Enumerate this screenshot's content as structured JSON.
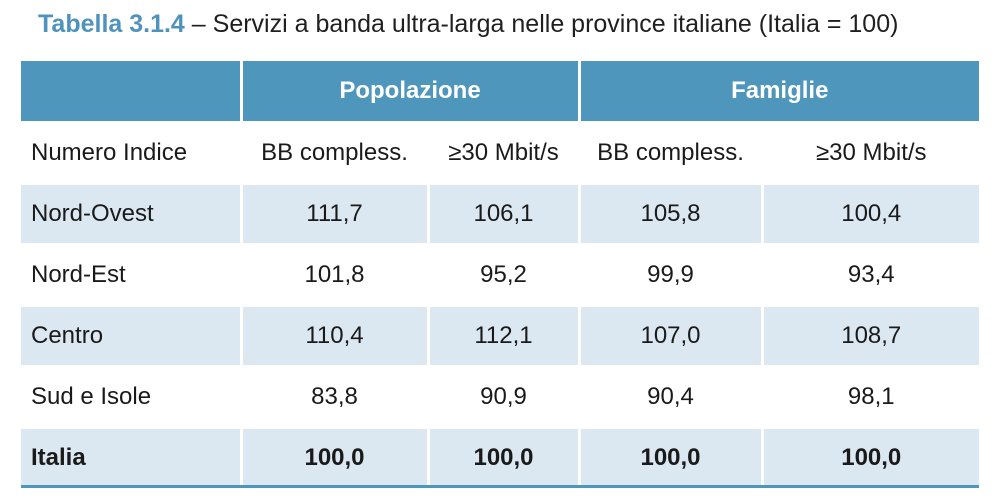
{
  "caption": {
    "number": "Tabella 3.1.4",
    "text": " – Servizi a banda ultra-larga nelle province italiane (Italia = 100)"
  },
  "header": {
    "group1": "Popolazione",
    "group2": "Famiglie"
  },
  "subheader": {
    "label": "Numero Indice",
    "col1": "BB compless.",
    "col2": "≥30 Mbit/s",
    "col3": "BB compless.",
    "col4": "≥30 Mbit/s"
  },
  "rows": [
    {
      "name": "Nord-Ovest",
      "v1": "111,7",
      "v2": "106,1",
      "v3": "105,8",
      "v4": "100,4"
    },
    {
      "name": "Nord-Est",
      "v1": "101,8",
      "v2": "95,2",
      "v3": "99,9",
      "v4": "93,4"
    },
    {
      "name": "Centro",
      "v1": "110,4",
      "v2": "112,1",
      "v3": "107,0",
      "v4": "108,7"
    },
    {
      "name": "Sud e Isole",
      "v1": "83,8",
      "v2": "90,9",
      "v3": "90,4",
      "v4": "98,1"
    },
    {
      "name": "Italia",
      "v1": "100,0",
      "v2": "100,0",
      "v3": "100,0",
      "v4": "100,0"
    }
  ],
  "colors": {
    "header_blue": "#4f96bc",
    "stripe": "#dce8f1",
    "caption_accent": "#4f93bd"
  }
}
